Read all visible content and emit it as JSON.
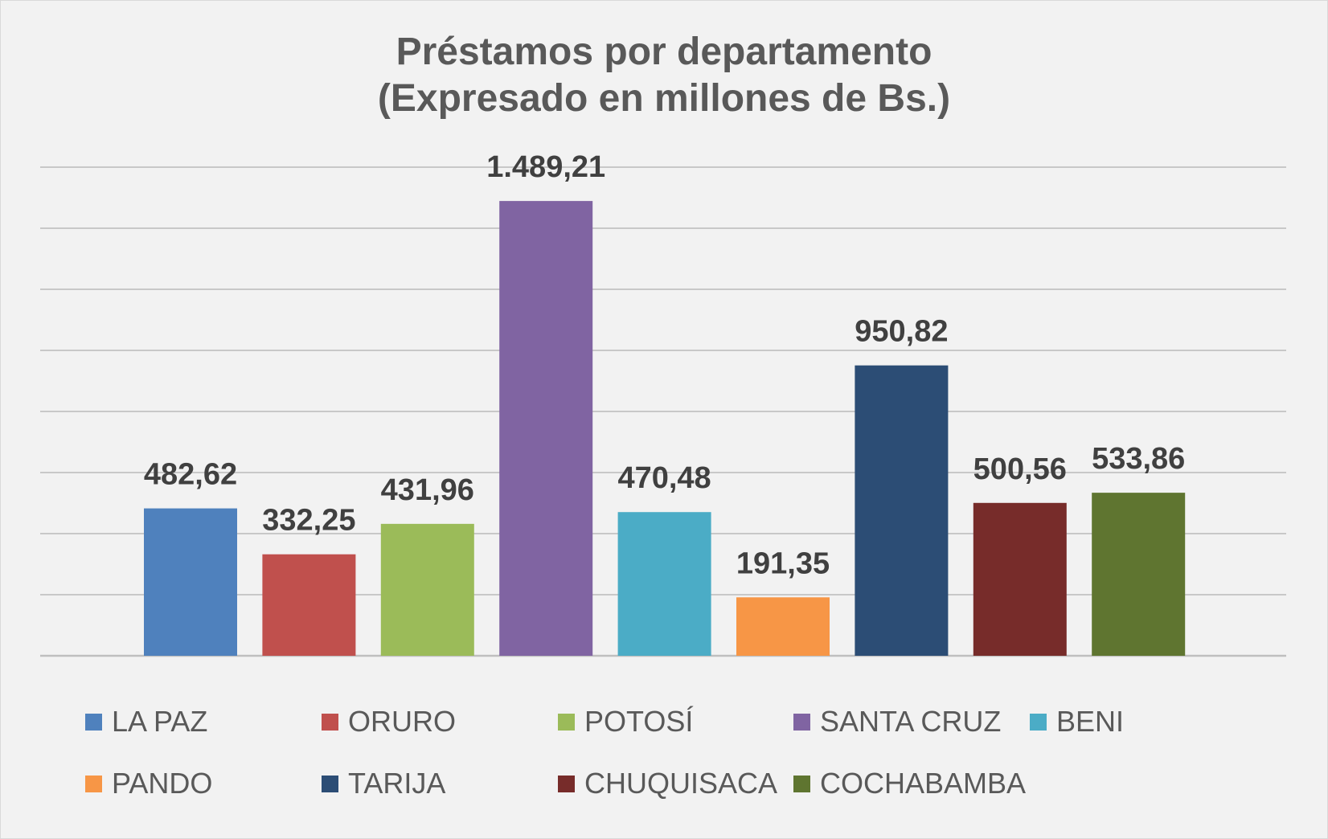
{
  "chart_data": {
    "type": "bar",
    "title": "Préstamos por departamento",
    "subtitle": "(Expresado en millones de Bs.)",
    "categories": [
      "LA PAZ",
      "ORURO",
      "POTOSÍ",
      "SANTA CRUZ",
      "BENI",
      "PANDO",
      "TARIJA",
      "CHUQUISACA",
      "COCHABAMBA"
    ],
    "values": [
      482.62,
      332.25,
      431.96,
      1489.21,
      470.48,
      191.35,
      950.82,
      500.56,
      533.86
    ],
    "value_labels": [
      "482,62",
      "332,25",
      "431,96",
      "1.489,21",
      "470,48",
      "191,35",
      "950,82",
      "500,56",
      "533,86"
    ],
    "colors": [
      "#4f81bd",
      "#c0504d",
      "#9bbb59",
      "#8064a2",
      "#4bacc6",
      "#f79646",
      "#2c4d75",
      "#772c2a",
      "#5f7530"
    ],
    "ylim": [
      0,
      1600
    ],
    "gridlines": true,
    "y_tick_labels_shown": false,
    "legend_position": "bottom"
  }
}
